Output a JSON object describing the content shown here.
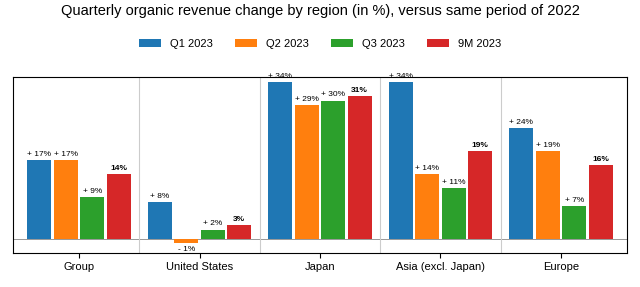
{
  "chart_data": {
    "type": "bar",
    "title": "Quarterly organic revenue change by region (in %), versus same period of 2022",
    "categories": [
      "Group",
      "United States",
      "Japan",
      "Asia (excl. Japan)",
      "Europe"
    ],
    "series": [
      {
        "name": "Q1 2023",
        "values": [
          17,
          8,
          34,
          34,
          24
        ],
        "value_labels": [
          "+ 17%",
          "+ 8%",
          "+ 34%",
          "+ 34%",
          "+ 24%"
        ]
      },
      {
        "name": "Q2 2023",
        "values": [
          17,
          -1,
          29,
          14,
          19
        ],
        "value_labels": [
          "+ 17%",
          "- 1%",
          "+ 29%",
          "+ 14%",
          "+ 19%"
        ]
      },
      {
        "name": "Q3 2023",
        "values": [
          9,
          2,
          30,
          11,
          7
        ],
        "value_labels": [
          "+ 9%",
          "+ 2%",
          "+ 30%",
          "+ 11%",
          "+ 7%"
        ]
      },
      {
        "name": "9M 2023",
        "values": [
          14,
          3,
          31,
          19,
          16
        ],
        "value_labels": [
          "14%",
          "3%",
          "31%",
          "19%",
          "16%"
        ]
      }
    ],
    "ylim": [
      -3,
      35
    ],
    "data_labels": true,
    "tick_labels": "x",
    "legend": "upper center"
  }
}
